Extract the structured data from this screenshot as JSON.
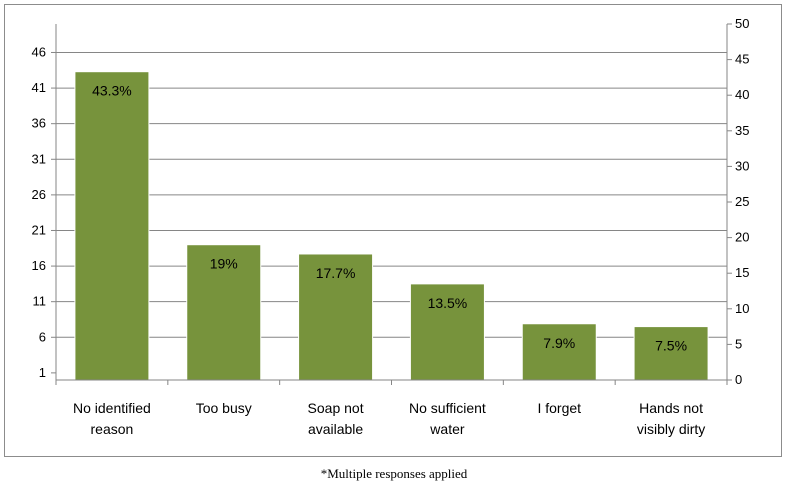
{
  "footnote": "*Multiple responses applied",
  "chart_data": {
    "type": "bar",
    "title": "",
    "xlabel": "",
    "ylabel": "",
    "categories": [
      [
        "No identified",
        "reason"
      ],
      [
        "Too busy"
      ],
      [
        "Soap not",
        "available"
      ],
      [
        "No sufficient",
        "water"
      ],
      [
        "I forget"
      ],
      [
        "Hands not",
        "visibly dirty"
      ]
    ],
    "values": [
      43.3,
      19,
      17.7,
      13.5,
      7.9,
      7.5
    ],
    "data_labels": [
      "43.3%",
      "19%",
      "17.7%",
      "13.5%",
      "7.9%",
      "7.5%"
    ],
    "left_axis": {
      "ticks": [
        1,
        6,
        11,
        16,
        21,
        26,
        31,
        36,
        41,
        46
      ]
    },
    "right_axis": {
      "ylim": [
        0,
        50
      ],
      "ticks": [
        0,
        5,
        10,
        15,
        20,
        25,
        30,
        35,
        40,
        45,
        50
      ]
    },
    "grid": true,
    "legend": "none",
    "colors": {
      "bar": "#77933c",
      "bar_edge": "#ffffff",
      "grid": "#868686",
      "axis": "#868686"
    }
  }
}
